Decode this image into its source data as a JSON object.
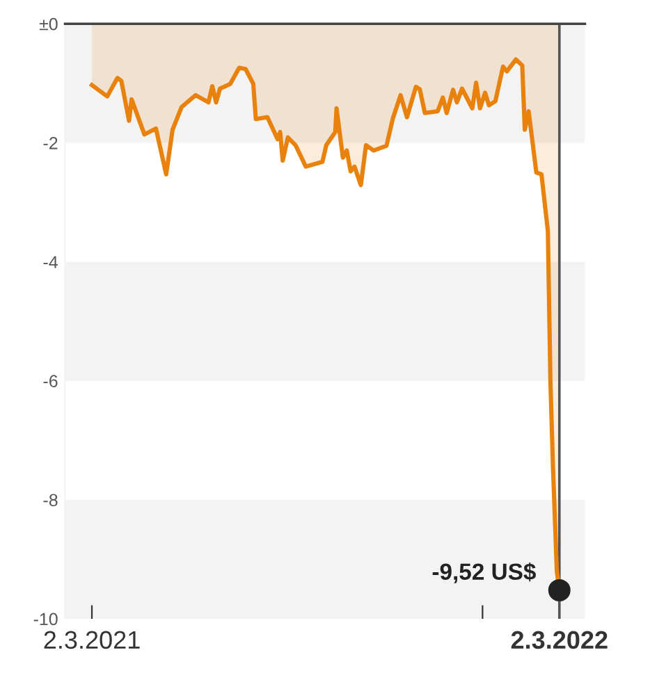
{
  "chart_data": {
    "type": "area",
    "x": [
      "2021-03-02",
      "2021-03-14",
      "2021-03-22",
      "2021-03-25",
      "2021-03-31",
      "2021-04-02",
      "2021-04-12",
      "2021-04-21",
      "2021-04-29",
      "2021-05-04",
      "2021-05-11",
      "2021-05-22",
      "2021-06-01",
      "2021-06-04",
      "2021-06-07",
      "2021-06-10",
      "2021-06-18",
      "2021-06-25",
      "2021-06-30",
      "2021-07-06",
      "2021-07-08",
      "2021-07-17",
      "2021-07-25",
      "2021-07-27",
      "2021-07-29",
      "2021-08-02",
      "2021-08-08",
      "2021-08-16",
      "2021-08-29",
      "2021-09-01",
      "2021-09-08",
      "2021-09-09",
      "2021-09-14",
      "2021-09-17",
      "2021-09-20",
      "2021-09-23",
      "2021-09-28",
      "2021-10-02",
      "2021-10-08",
      "2021-10-18",
      "2021-10-23",
      "2021-10-29",
      "2021-11-03",
      "2021-11-10",
      "2021-11-13",
      "2021-11-17",
      "2021-11-27",
      "2021-12-01",
      "2021-12-04",
      "2021-12-09",
      "2021-12-12",
      "2021-12-16",
      "2021-12-24",
      "2021-12-27",
      "2021-12-30",
      "2022-01-03",
      "2022-01-06",
      "2022-01-11",
      "2022-01-17",
      "2022-01-20",
      "2022-01-27",
      "2022-02-01",
      "2022-02-03",
      "2022-02-06",
      "2022-02-12",
      "2022-02-16",
      "2022-02-21",
      "2022-02-23",
      "2022-02-25",
      "2022-02-28",
      "2022-03-02"
    ],
    "series": [
      {
        "color": "#e8820c",
        "values": [
          -1.03,
          -1.22,
          -0.91,
          -0.96,
          -1.63,
          -1.27,
          -1.86,
          -1.76,
          -2.53,
          -1.78,
          -1.4,
          -1.2,
          -1.32,
          -1.05,
          -1.32,
          -1.09,
          -1.01,
          -0.74,
          -0.76,
          -1.01,
          -1.6,
          -1.57,
          -1.94,
          -1.82,
          -2.3,
          -1.91,
          -2.04,
          -2.4,
          -2.32,
          -2.04,
          -1.82,
          -1.42,
          -2.25,
          -2.13,
          -2.48,
          -2.4,
          -2.71,
          -2.04,
          -2.13,
          -2.05,
          -1.59,
          -1.2,
          -1.57,
          -1.06,
          -1.1,
          -1.5,
          -1.47,
          -1.24,
          -1.5,
          -1.11,
          -1.32,
          -1.09,
          -1.42,
          -0.99,
          -1.42,
          -1.16,
          -1.37,
          -1.3,
          -0.72,
          -0.8,
          -0.6,
          -0.7,
          -1.78,
          -1.47,
          -2.5,
          -2.53,
          -3.48,
          -6.0,
          -7.45,
          -9.2,
          -9.52
        ]
      }
    ],
    "xlim": [
      "2021-02-09",
      "2022-03-22"
    ],
    "xticks": [
      {
        "value": "2021-03-02",
        "label": "2.3.2021"
      },
      {
        "value": "2022-01-01",
        "label": null
      },
      {
        "value": "2022-03-02",
        "label": "2.3.2022"
      }
    ],
    "ylim": [
      -10,
      0
    ],
    "yticks": [
      {
        "value": 0,
        "label": "±0"
      },
      -2,
      -4,
      -6,
      -8,
      -10
    ],
    "bands": [
      {
        "axis": "y",
        "from": 0,
        "to": -2,
        "color": "#f3f3f3"
      },
      {
        "axis": "y",
        "from": -4,
        "to": -6,
        "color": "#f3f3f3"
      },
      {
        "axis": "y",
        "from": -8,
        "to": -10,
        "color": "#f3f3f3"
      }
    ],
    "ref_lines": [
      {
        "axis": "x",
        "value": "2022-03-02",
        "color": "#555555"
      }
    ],
    "annotations": [
      {
        "text": "-9,52 US$",
        "x": "2022-03-02",
        "y": -9.52
      }
    ],
    "grid": false,
    "legend": false
  }
}
